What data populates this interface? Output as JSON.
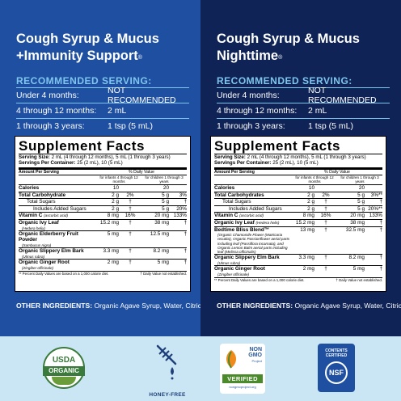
{
  "left": {
    "title_line1": "Cough Syrup & Mucus",
    "title_line2": "+Immunity Support",
    "title_mark": "®",
    "rs_heading": "RECOMMENDED SERVING:",
    "rs_rows": [
      {
        "age": "Under 4 months:",
        "dose": "NOT RECOMMENDED"
      },
      {
        "age": "4 through 12 months:",
        "dose": "2 mL"
      },
      {
        "age": "1 through 3 years:",
        "dose": "1 tsp (5 mL)"
      }
    ],
    "facts": {
      "title": "Supplement Facts",
      "serving_size_label": "Serving Size:",
      "serving_size": "2 mL (4 through 12 months), 5 mL (1 through 3 years)",
      "servings_label": "Servings Per Container:",
      "servings": "25 (2 mL), 10 (5 mL)",
      "amount_per_serving": "Amount Per Serving",
      "daily_value": "% Daily Value",
      "col1": "for infants 4 through 12 months",
      "col2": "for children 1 through 3 years",
      "rows": [
        {
          "name": "Calories",
          "v1": "10",
          "d1": "",
          "v2": "20",
          "d2": "",
          "style": "bold"
        },
        {
          "name": "Total Carbohydrate",
          "v1": "2 g",
          "d1": "2%",
          "v2": "5 g",
          "d2": "3%",
          "style": "bold"
        },
        {
          "name": "Total Sugars",
          "v1": "2 g",
          "d1": "†",
          "v2": "5 g",
          "d2": "†",
          "style": "ind"
        },
        {
          "name": "Includes Added Sugars",
          "v1": "2 g",
          "d1": "†",
          "v2": "5 g",
          "d2": "20%",
          "style": "ind2"
        },
        {
          "name": "Vitamin C",
          "desc_inline": "(ascorbic acid)",
          "v1": "8 mg",
          "d1": "16%",
          "v2": "20 mg",
          "d2": "133%",
          "style": "bold"
        },
        {
          "name": "Organic Ivy Leaf",
          "desc": "(Hedera helix)",
          "v1": "15.2 mg",
          "d1": "†",
          "v2": "38 mg",
          "d2": "†",
          "style": "bold"
        },
        {
          "name": "Organic Elderberry Fruit Powder",
          "desc": "(Sambucus nigra)",
          "v1": "5 mg",
          "d1": "†",
          "v2": "12.5 mg",
          "d2": "†",
          "style": "bold"
        },
        {
          "name": "Organic Slippery Elm Bark",
          "desc": "(Ulmus rubra)",
          "v1": "3.3 mg",
          "d1": "†",
          "v2": "8.2 mg",
          "d2": "†",
          "style": "bold"
        },
        {
          "name": "Organic Ginger Root",
          "desc": "(Zingiber officinale)",
          "v1": "2 mg",
          "d1": "†",
          "v2": "5 mg",
          "d2": "†",
          "style": "bold"
        }
      ],
      "foot_left": "** Percent Daily Values are based on a 1,000 calorie diet.",
      "foot_right": "† Daily Value not established."
    },
    "other_label": "OTHER INGREDIENTS:",
    "other_text": "Organic Agave Syrup, Water, Citric Acid."
  },
  "right": {
    "title_line1": "Cough Syrup & Mucus",
    "title_line2": "Nighttime",
    "title_mark": "®",
    "rs_heading": "RECOMMENDED SERVING:",
    "rs_rows": [
      {
        "age": "Under 4 months:",
        "dose": "NOT RECOMMENDED"
      },
      {
        "age": "4 through 12 months:",
        "dose": "2 mL"
      },
      {
        "age": "1 through 3 years:",
        "dose": "1 tsp (5 mL)"
      }
    ],
    "facts": {
      "title": "Supplement Facts",
      "serving_size_label": "Serving Size:",
      "serving_size": "2 mL (4 through 12 months), 5 mL (1 through 3 years)",
      "servings_label": "Servings Per Container:",
      "servings": "25 (2 mL), 10 (5 mL)",
      "amount_per_serving": "Amount Per Serving",
      "daily_value": "% Daily Value",
      "col1": "for infants 4 through 12 months",
      "col2": "for children 1 through 3 years",
      "rows": [
        {
          "name": "Calories",
          "v1": "10",
          "d1": "",
          "v2": "20",
          "d2": "",
          "style": "bold"
        },
        {
          "name": "Total Carbohydrates",
          "v1": "2 g",
          "d1": "2%",
          "v2": "5 g",
          "d2": "3%**",
          "style": "bold"
        },
        {
          "name": "Total Sugars",
          "v1": "2 g",
          "d1": "†",
          "v2": "5 g",
          "d2": "†",
          "style": "ind"
        },
        {
          "name": "Includes Added Sugars",
          "v1": "2 g",
          "d1": "†",
          "v2": "5 g",
          "d2": "20%**",
          "style": "ind2"
        },
        {
          "name": "Vitamin C",
          "desc_inline": "(ascorbic acid)",
          "v1": "8 mg",
          "d1": "16%",
          "v2": "20 mg",
          "d2": "133%",
          "style": "bold"
        },
        {
          "name": "Organic Ivy Leaf",
          "desc_inline": "(Hedera helix)",
          "v1": "15.2 mg",
          "d1": "†",
          "v2": "38 mg",
          "d2": "†",
          "style": "bold"
        },
        {
          "name": "Bedtime Bliss Blend™",
          "desc": "(Organic Chamomile Flower (Matricaria recutita), Organic Passionflower aerial parts including leaf (Passiflora incarnata), and Organic Lemon Balm aerial parts including leaf (Melissa officinalis)",
          "v1": "13 mg",
          "d1": "†",
          "v2": "32.5 mg",
          "d2": "†",
          "style": "bold"
        },
        {
          "name": "Organic Slippery Elm Bark",
          "desc": "(Ulmus rubra)",
          "v1": "3.3 mg",
          "d1": "†",
          "v2": "8.2 mg",
          "d2": "†",
          "style": "bold"
        },
        {
          "name": "Organic Ginger Root",
          "desc": "(Zingiber officinale)",
          "v1": "2 mg",
          "d1": "†",
          "v2": "5 mg",
          "d2": "†",
          "style": "bold"
        }
      ],
      "foot_left": "** Percent Daily Values are based on a 1,000 calorie diet.",
      "foot_right": "† Daily Value not established."
    },
    "other_label": "OTHER INGREDIENTS:",
    "other_text": "Organic Agave Syrup, Water, Citric Acid."
  },
  "badges": {
    "usda_top": "USDA",
    "usda_band": "ORGANIC",
    "honey_label": "HONEY-FREE",
    "ngmo_non": "NON",
    "ngmo_gmo": "GMO",
    "ngmo_project": "Project",
    "ngmo_verified": "VERIFIED",
    "ngmo_url": "nongmoproject.org",
    "nsf_top": "CONTENTS CERTIFIED",
    "nsf_mark": "NSF"
  },
  "colors": {
    "left_panel": "#1f4fa0",
    "right_panel": "#0f2356",
    "accent": "#7fc6ee",
    "badge_strip": "#cae6f4"
  }
}
